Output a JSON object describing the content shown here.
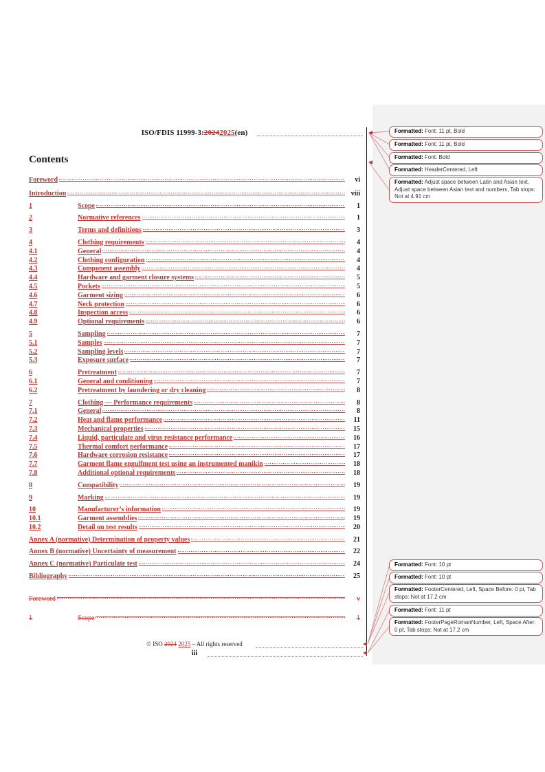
{
  "header": {
    "title_prefix": "ISO/FDIS 11999-3:",
    "deleted_year": "2024",
    "inserted_year": "2025",
    "title_suffix": "(en)"
  },
  "contents_title": "Contents",
  "toc": [
    {
      "num": "",
      "title": "Foreword",
      "page": "vi",
      "type": "front"
    },
    {
      "num": "",
      "title": "Introduction",
      "page": "viii",
      "type": "front"
    },
    {
      "num": "1",
      "title": "Scope",
      "page": "1",
      "type": "l1"
    },
    {
      "num": "2",
      "title": "Normative references",
      "page": "1",
      "type": "l1"
    },
    {
      "num": "3",
      "title": "Terms and definitions",
      "page": "3",
      "type": "l1"
    },
    {
      "num": "4",
      "title": "Clothing requirements",
      "page": "4",
      "type": "l1"
    },
    {
      "num": "4.1",
      "title": "General",
      "page": "4",
      "type": "sub"
    },
    {
      "num": "4.2",
      "title": "Clothing configuration",
      "page": "4",
      "type": "sub"
    },
    {
      "num": "4.3",
      "title": "Component assembly",
      "page": "4",
      "type": "sub"
    },
    {
      "num": "4.4",
      "title": "Hardware and garment closure systems",
      "page": "5",
      "type": "sub"
    },
    {
      "num": "4.5",
      "title": "Pockets",
      "page": "5",
      "type": "sub"
    },
    {
      "num": "4.6",
      "title": "Garment sizing",
      "page": "6",
      "type": "sub"
    },
    {
      "num": "4.7",
      "title": "Neck protection",
      "page": "6",
      "type": "sub"
    },
    {
      "num": "4.8",
      "title": "Inspection access",
      "page": "6",
      "type": "sub"
    },
    {
      "num": "4.9",
      "title": "Optional requirements",
      "page": "6",
      "type": "sub"
    },
    {
      "num": "5",
      "title": "Sampling",
      "page": "7",
      "type": "l1"
    },
    {
      "num": "5.1",
      "title": "Samples",
      "page": "7",
      "type": "sub"
    },
    {
      "num": "5.2",
      "title": "Sampling levels",
      "page": "7",
      "type": "sub"
    },
    {
      "num": "5.3",
      "title": "Exposure surface",
      "page": "7",
      "type": "sub"
    },
    {
      "num": "6",
      "title": "Pretreatment",
      "page": "7",
      "type": "l1"
    },
    {
      "num": "6.1",
      "title": "General and conditioning",
      "page": "7",
      "type": "sub"
    },
    {
      "num": "6.2",
      "title": "Pretreatment by laundering or dry cleaning",
      "page": "8",
      "type": "sub"
    },
    {
      "num": "7",
      "title": "Clothing — Performance requirements",
      "page": "8",
      "type": "l1"
    },
    {
      "num": "7.1",
      "title": "General",
      "page": "8",
      "type": "sub"
    },
    {
      "num": "7.2",
      "title": "Heat and flame performance",
      "page": "11",
      "type": "sub"
    },
    {
      "num": "7.3",
      "title": "Mechanical properties",
      "page": "15",
      "type": "sub"
    },
    {
      "num": "7.4",
      "title": "Liquid, particulate and virus resistance performance",
      "page": "16",
      "type": "sub"
    },
    {
      "num": "7.5",
      "title": "Thermal comfort performance",
      "page": "17",
      "type": "sub"
    },
    {
      "num": "7.6",
      "title": "Hardware corrosion resistance",
      "page": "17",
      "type": "sub"
    },
    {
      "num": "7.7",
      "title": "Garment flame engulfment test using an instrumented manikin",
      "page": "18",
      "type": "sub"
    },
    {
      "num": "7.8",
      "title": "Additional optional requirements",
      "page": "18",
      "type": "sub"
    },
    {
      "num": "8",
      "title": "Compatibility",
      "page": "19",
      "type": "l1"
    },
    {
      "num": "9",
      "title": "Marking",
      "page": "19",
      "type": "l1"
    },
    {
      "num": "10",
      "title": "Manufacturer’s information",
      "page": "19",
      "type": "l1"
    },
    {
      "num": "10.1",
      "title": "Garment assemblies",
      "page": "19",
      "type": "sub"
    },
    {
      "num": "10.2",
      "title": "Detail on test results",
      "page": "20",
      "type": "sub"
    },
    {
      "num": "",
      "title": "Annex A (normative)  Determination of property values",
      "page": "21",
      "type": "annex"
    },
    {
      "num": "",
      "title": "Annex B (normative)  Uncertainty of measurement",
      "page": "22",
      "type": "annex"
    },
    {
      "num": "",
      "title": "Annex C (normative)  Particulate test",
      "page": "24",
      "type": "annex"
    },
    {
      "num": "",
      "title": "Bibliography",
      "page": "25",
      "type": "annex"
    },
    {
      "num": "",
      "title": "Foreword",
      "page": "v",
      "type": "deleted-front"
    },
    {
      "num": "1",
      "title": "Scope",
      "page": "1",
      "type": "deleted-l1"
    }
  ],
  "footer": {
    "copyright_prefix": "© ISO ",
    "deleted_year": "2024",
    "inserted_year": "2025",
    "copyright_suffix": " – All rights reserved",
    "page_number": "iii"
  },
  "comments_top": [
    {
      "label": "Formatted:",
      "text": "Font: 11 pt, Bold"
    },
    {
      "label": "Formatted:",
      "text": "Font: 11 pt, Bold"
    },
    {
      "label": "Formatted:",
      "text": "Font: Bold"
    },
    {
      "label": "Formatted:",
      "text": "HeaderCentered, Left"
    },
    {
      "label": "Formatted:",
      "text": "Adjust space between Latin and Asian text, Adjust space between Asian text and numbers, Tab stops: Not at  4.91 cm"
    }
  ],
  "comments_bottom": [
    {
      "label": "Formatted:",
      "text": "Font: 10 pt"
    },
    {
      "label": "Formatted:",
      "text": "Font: 10 pt"
    },
    {
      "label": "Formatted:",
      "text": "FooterCentered, Left, Space Before:  0 pt, Tab stops: Not at  17.2 cm"
    },
    {
      "label": "Formatted:",
      "text": "Font: 11 pt"
    },
    {
      "label": "Formatted:",
      "text": "FooterPageRomanNumber, Left, Space After:  0 pt, Tab stops: Not at  17.2 cm"
    }
  ],
  "colors": {
    "tracked_change_red": "#c13530",
    "comment_box_border": "#c9504e",
    "connector_line": "#d98b8b",
    "markup_area_bg": "#f2f2f2"
  }
}
